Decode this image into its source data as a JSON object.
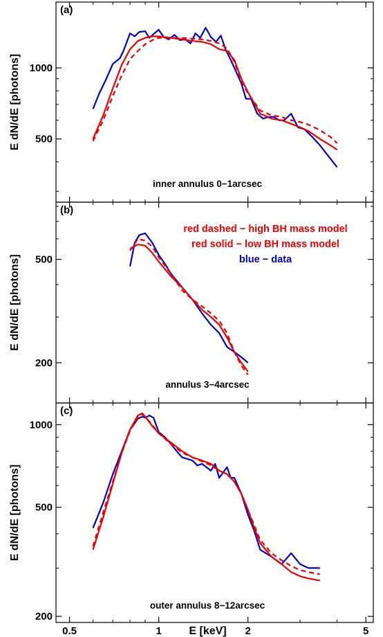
{
  "chart_data": [
    {
      "type": "line",
      "panel_label": "(a)",
      "annotation": "inner annulus 0−1arcsec",
      "ylabel": "E dN/dE [photons]",
      "xscale": "log",
      "yscale": "log",
      "xlim": [
        0.45,
        5.3
      ],
      "ylim": [
        270,
        1900
      ],
      "yticks": [
        500,
        1000
      ],
      "ytick_labels": [
        "500",
        "1000"
      ],
      "xticks": [
        0.5,
        1,
        2,
        5
      ],
      "series": [
        {
          "style": "data",
          "color": "#0000cc",
          "dash": "solid",
          "x": [
            0.6,
            0.63,
            0.66,
            0.7,
            0.74,
            0.76,
            0.8,
            0.83,
            0.86,
            0.9,
            0.93,
            0.96,
            1.0,
            1.04,
            1.08,
            1.13,
            1.18,
            1.23,
            1.28,
            1.33,
            1.38,
            1.44,
            1.5,
            1.56,
            1.62,
            1.68,
            1.75,
            1.82,
            1.9,
            1.97,
            2.05,
            2.15,
            2.25,
            2.35,
            2.45,
            2.55,
            2.65,
            2.8,
            2.95,
            3.1,
            3.3,
            3.5,
            3.7,
            4.0
          ],
          "y": [
            670,
            780,
            880,
            1040,
            1100,
            1180,
            1400,
            1360,
            1420,
            1430,
            1340,
            1390,
            1450,
            1350,
            1320,
            1380,
            1310,
            1320,
            1270,
            1400,
            1340,
            1480,
            1350,
            1290,
            1370,
            1200,
            1080,
            970,
            860,
            740,
            740,
            640,
            610,
            620,
            620,
            600,
            600,
            640,
            560,
            550,
            510,
            470,
            430,
            380
          ]
        },
        {
          "style": "low BH mass model",
          "color": "#ee0000",
          "dash": "solid",
          "x": [
            0.6,
            0.65,
            0.7,
            0.75,
            0.8,
            0.85,
            0.9,
            0.95,
            1.0,
            1.1,
            1.2,
            1.3,
            1.4,
            1.5,
            1.6,
            1.7,
            1.8,
            1.9,
            2.0,
            2.2,
            2.4,
            2.6,
            2.8,
            3.0,
            3.2,
            3.5,
            3.8,
            4.0
          ],
          "y": [
            500,
            630,
            820,
            1030,
            1200,
            1300,
            1340,
            1360,
            1360,
            1340,
            1320,
            1300,
            1290,
            1260,
            1200,
            1180,
            1080,
            900,
            790,
            640,
            610,
            600,
            580,
            560,
            540,
            500,
            470,
            450
          ]
        },
        {
          "style": "high BH mass model",
          "color": "#ee0000",
          "dash": "dashed",
          "x": [
            0.6,
            0.65,
            0.7,
            0.75,
            0.8,
            0.85,
            0.9,
            0.95,
            1.0,
            1.1,
            1.2,
            1.3,
            1.4,
            1.5,
            1.6,
            1.7,
            1.8,
            1.9,
            2.0,
            2.2,
            2.4,
            2.6,
            2.8,
            3.0,
            3.2,
            3.5,
            3.8,
            4.0
          ],
          "y": [
            490,
            600,
            760,
            930,
            1090,
            1180,
            1260,
            1310,
            1340,
            1340,
            1340,
            1330,
            1320,
            1300,
            1270,
            1210,
            1060,
            880,
            780,
            660,
            630,
            620,
            600,
            590,
            575,
            545,
            510,
            480
          ]
        }
      ]
    },
    {
      "type": "line",
      "panel_label": "(b)",
      "annotation": "annulus 3−4arcsec",
      "ylabel": "E dN/dE [photons]",
      "xscale": "log",
      "yscale": "log",
      "xlim": [
        0.45,
        5.3
      ],
      "ylim": [
        140,
        830
      ],
      "yticks": [
        200,
        500
      ],
      "ytick_labels": [
        "200",
        "500"
      ],
      "xticks": [
        0.5,
        1,
        2,
        5
      ],
      "legend": [
        {
          "text": "red dashed − high BH mass model",
          "color": "#ee0000"
        },
        {
          "text": "red solid − low BH mass model",
          "color": "#ee0000"
        },
        {
          "text": "blue − data",
          "color": "#0000cc"
        }
      ],
      "series": [
        {
          "style": "data",
          "color": "#0000cc",
          "dash": "solid",
          "x": [
            0.8,
            0.83,
            0.86,
            0.9,
            0.95,
            1.0,
            1.05,
            1.1,
            1.2,
            1.3,
            1.4,
            1.5,
            1.6,
            1.7,
            1.8,
            1.9,
            2.0
          ],
          "y": [
            470,
            580,
            620,
            630,
            580,
            520,
            480,
            440,
            390,
            350,
            310,
            280,
            260,
            230,
            220,
            210,
            200
          ]
        },
        {
          "style": "low BH mass model",
          "color": "#ee0000",
          "dash": "solid",
          "x": [
            0.8,
            0.85,
            0.9,
            0.95,
            1.0,
            1.1,
            1.2,
            1.3,
            1.4,
            1.5,
            1.6,
            1.7,
            1.8,
            1.9,
            2.0
          ],
          "y": [
            550,
            570,
            565,
            530,
            490,
            430,
            390,
            350,
            320,
            300,
            280,
            250,
            220,
            200,
            185
          ]
        },
        {
          "style": "high BH mass model",
          "color": "#ee0000",
          "dash": "dashed",
          "x": [
            0.8,
            0.85,
            0.9,
            0.95,
            1.0,
            1.1,
            1.2,
            1.3,
            1.4,
            1.5,
            1.6,
            1.7,
            1.8,
            1.9,
            2.0
          ],
          "y": [
            540,
            600,
            590,
            560,
            510,
            440,
            380,
            350,
            330,
            310,
            290,
            260,
            220,
            195,
            180
          ]
        }
      ]
    },
    {
      "type": "line",
      "panel_label": "(c)",
      "annotation": "outer annulus 8−12arcsec",
      "ylabel": "E dN/dE [photons]",
      "xlabel": "E [keV]",
      "xscale": "log",
      "yscale": "log",
      "xlim": [
        0.45,
        5.3
      ],
      "ylim": [
        190,
        1200
      ],
      "yticks": [
        200,
        500,
        1000
      ],
      "ytick_labels": [
        "200",
        "500",
        "1000"
      ],
      "xticks": [
        0.5,
        1,
        2,
        5
      ],
      "xtick_labels": [
        "0.5",
        "1",
        "2",
        "5"
      ],
      "series": [
        {
          "style": "data",
          "color": "#0000cc",
          "dash": "solid",
          "x": [
            0.6,
            0.65,
            0.7,
            0.75,
            0.8,
            0.85,
            0.88,
            0.9,
            0.93,
            0.96,
            1.0,
            1.05,
            1.1,
            1.15,
            1.2,
            1.3,
            1.35,
            1.4,
            1.5,
            1.55,
            1.6,
            1.7,
            1.75,
            1.8,
            1.9,
            2.0,
            2.1,
            2.2,
            2.4,
            2.6,
            2.8,
            3.0,
            3.2,
            3.5
          ],
          "y": [
            420,
            520,
            660,
            800,
            960,
            1050,
            1070,
            1060,
            1080,
            1060,
            940,
            900,
            850,
            800,
            760,
            740,
            710,
            720,
            680,
            720,
            640,
            700,
            640,
            640,
            560,
            470,
            410,
            350,
            330,
            310,
            340,
            310,
            300,
            300
          ]
        },
        {
          "style": "low BH mass model",
          "color": "#ee0000",
          "dash": "solid",
          "x": [
            0.6,
            0.65,
            0.7,
            0.75,
            0.8,
            0.85,
            0.88,
            0.9,
            0.95,
            1.0,
            1.1,
            1.2,
            1.3,
            1.4,
            1.5,
            1.6,
            1.7,
            1.8,
            1.9,
            2.0,
            2.1,
            2.2,
            2.4,
            2.6,
            2.8,
            3.0,
            3.2,
            3.5
          ],
          "y": [
            350,
            460,
            610,
            790,
            960,
            1080,
            1100,
            1070,
            990,
            930,
            860,
            800,
            760,
            740,
            720,
            680,
            660,
            620,
            560,
            490,
            420,
            370,
            330,
            310,
            290,
            280,
            275,
            270
          ]
        },
        {
          "style": "high BH mass model",
          "color": "#ee0000",
          "dash": "dashed",
          "x": [
            0.6,
            0.65,
            0.7,
            0.75,
            0.8,
            0.85,
            0.88,
            0.9,
            0.95,
            1.0,
            1.1,
            1.2,
            1.3,
            1.4,
            1.5,
            1.6,
            1.7,
            1.8,
            1.9,
            2.0,
            2.1,
            2.2,
            2.4,
            2.6,
            2.8,
            3.0,
            3.2,
            3.5
          ],
          "y": [
            360,
            480,
            620,
            790,
            950,
            1060,
            1090,
            1070,
            1000,
            930,
            850,
            790,
            760,
            735,
            710,
            680,
            660,
            620,
            560,
            490,
            430,
            380,
            340,
            320,
            305,
            295,
            290,
            285
          ]
        }
      ]
    }
  ]
}
